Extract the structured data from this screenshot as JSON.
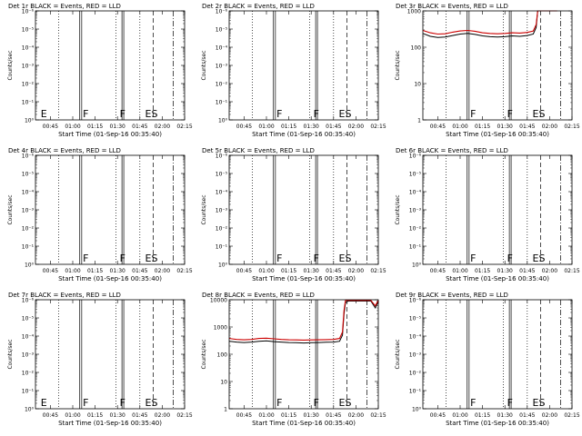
{
  "figure": {
    "x_tick_labels": [
      "00:45",
      "01:00",
      "01:15",
      "01:30",
      "01:45",
      "02:00",
      "02:15"
    ],
    "xlabel": "Start Time (01-Sep-16 00:35:40)"
  },
  "chart_data": [
    {
      "type": "line",
      "title": "Det 1r BLACK = Events, RED = LLD",
      "ylabel": "Counts/sec",
      "y_scale": "log",
      "ylim": [
        1,
        1e-06
      ],
      "y_tick_labels": [
        "10⁰",
        "10⁻¹",
        "10⁻²",
        "10⁻³",
        "10⁻⁴",
        "10⁻⁵",
        "10⁻⁶"
      ],
      "xlim_minutes": [
        0,
        100
      ],
      "solid_lines_min": [
        29.7,
        31.0,
        58.0,
        59.2
      ],
      "dotted_lines_min": [
        15.5,
        54.0,
        70.0
      ],
      "dashed_lines_min": [
        79.0
      ],
      "dashdot_lines_min": [
        92.3
      ],
      "markers": [
        {
          "label": "E",
          "x_min": 3.5
        },
        {
          "label": "F",
          "x_min": 31.8
        },
        {
          "label": "F",
          "x_min": 56.5
        },
        {
          "label": "ES",
          "x_min": 73.5
        }
      ],
      "series": []
    },
    {
      "type": "line",
      "title": "Det 2r BLACK = Events, RED = LLD",
      "ylabel": "Counts/sec",
      "y_scale": "log",
      "ylim": [
        1,
        1e-06
      ],
      "y_tick_labels": [
        "10⁰",
        "10⁻¹",
        "10⁻²",
        "10⁻³",
        "10⁻⁴",
        "10⁻⁵",
        "10⁻⁶"
      ],
      "xlim_minutes": [
        0,
        100
      ],
      "solid_lines_min": [
        29.7,
        31.0,
        58.0,
        59.2
      ],
      "dotted_lines_min": [
        15.5,
        54.0,
        70.0
      ],
      "dashed_lines_min": [
        79.0
      ],
      "dashdot_lines_min": [
        92.3
      ],
      "markers": [
        {
          "label": "F",
          "x_min": 31.8
        },
        {
          "label": "F",
          "x_min": 56.5
        },
        {
          "label": "ES",
          "x_min": 73.5
        }
      ],
      "series": []
    },
    {
      "type": "line",
      "title": "Det 3r BLACK = Events, RED = LLD",
      "ylabel": "Counts/sec",
      "y_scale": "log",
      "ylim": [
        1,
        1000
      ],
      "y_tick_labels": [
        "1",
        "10",
        "100",
        "1000"
      ],
      "xlim_minutes": [
        0,
        100
      ],
      "solid_lines_min": [
        29.7,
        31.0,
        58.0,
        59.2
      ],
      "dotted_lines_min": [
        15.5,
        54.0,
        70.0
      ],
      "dashed_lines_min": [
        79.0
      ],
      "dashdot_lines_min": [
        92.3
      ],
      "markers": [
        {
          "label": "F",
          "x_min": 31.8
        },
        {
          "label": "F",
          "x_min": 56.5
        },
        {
          "label": "ES",
          "x_min": 73.5
        }
      ],
      "series": [
        {
          "color": "#000000",
          "x": [
            0,
            5,
            10,
            15,
            20,
            25,
            30,
            35,
            40,
            45,
            50,
            55,
            60,
            65,
            70,
            74,
            76,
            77,
            78,
            80,
            85,
            90
          ],
          "y": [
            240,
            200,
            185,
            190,
            210,
            230,
            240,
            225,
            205,
            195,
            190,
            195,
            205,
            200,
            210,
            230,
            350,
            1000,
            1000,
            1000,
            1000,
            1000
          ]
        },
        {
          "color": "#cc0000",
          "x": [
            0,
            5,
            10,
            15,
            20,
            25,
            30,
            35,
            40,
            45,
            50,
            55,
            60,
            65,
            70,
            74,
            76,
            77,
            78,
            80,
            85,
            90
          ],
          "y": [
            290,
            250,
            230,
            235,
            260,
            280,
            290,
            275,
            250,
            240,
            235,
            240,
            250,
            245,
            255,
            280,
            420,
            1000,
            1000,
            1000,
            1000,
            1000
          ]
        }
      ]
    },
    {
      "type": "line",
      "title": "Det 4r BLACK = Events, RED = LLD",
      "ylabel": "Counts/sec",
      "y_scale": "log",
      "ylim": [
        1,
        1e-06
      ],
      "y_tick_labels": [
        "10⁰",
        "10⁻¹",
        "10⁻²",
        "10⁻³",
        "10⁻⁴",
        "10⁻⁵",
        "10⁻⁶"
      ],
      "xlim_minutes": [
        0,
        100
      ],
      "solid_lines_min": [
        29.7,
        31.0,
        58.0,
        59.2
      ],
      "dotted_lines_min": [
        15.5,
        54.0,
        70.0
      ],
      "dashed_lines_min": [
        79.0
      ],
      "dashdot_lines_min": [
        92.3
      ],
      "markers": [
        {
          "label": "F",
          "x_min": 31.8
        },
        {
          "label": "F",
          "x_min": 56.5
        },
        {
          "label": "ES",
          "x_min": 73.5
        }
      ],
      "series": []
    },
    {
      "type": "line",
      "title": "Det 5r BLACK = Events, RED = LLD",
      "ylabel": "Counts/sec",
      "y_scale": "log",
      "ylim": [
        1,
        1e-06
      ],
      "y_tick_labels": [
        "10⁰",
        "10⁻¹",
        "10⁻²",
        "10⁻³",
        "10⁻⁴",
        "10⁻⁵",
        "10⁻⁶"
      ],
      "xlim_minutes": [
        0,
        100
      ],
      "solid_lines_min": [
        29.7,
        31.0,
        58.0,
        59.2
      ],
      "dotted_lines_min": [
        15.5,
        54.0,
        70.0
      ],
      "dashed_lines_min": [
        79.0
      ],
      "dashdot_lines_min": [
        92.3
      ],
      "markers": [
        {
          "label": "F",
          "x_min": 31.8
        },
        {
          "label": "F",
          "x_min": 56.5
        },
        {
          "label": "ES",
          "x_min": 73.5
        }
      ],
      "series": []
    },
    {
      "type": "line",
      "title": "Det 6r BLACK = Events, RED = LLD",
      "ylabel": "Counts/sec",
      "y_scale": "log",
      "ylim": [
        1,
        1e-06
      ],
      "y_tick_labels": [
        "10⁰",
        "10⁻¹",
        "10⁻²",
        "10⁻³",
        "10⁻⁴",
        "10⁻⁵",
        "10⁻⁶"
      ],
      "xlim_minutes": [
        0,
        100
      ],
      "solid_lines_min": [
        29.7,
        31.0,
        58.0,
        59.2
      ],
      "dotted_lines_min": [
        15.5,
        54.0,
        70.0
      ],
      "dashed_lines_min": [
        79.0
      ],
      "dashdot_lines_min": [
        92.3
      ],
      "markers": [
        {
          "label": "F",
          "x_min": 31.8
        },
        {
          "label": "F",
          "x_min": 56.5
        },
        {
          "label": "ES",
          "x_min": 73.5
        }
      ],
      "series": []
    },
    {
      "type": "line",
      "title": "Det 7r BLACK = Events, RED = LLD",
      "ylabel": "Counts/sec",
      "y_scale": "log",
      "ylim": [
        1,
        1e-06
      ],
      "y_tick_labels": [
        "10⁰",
        "10⁻¹",
        "10⁻²",
        "10⁻³",
        "10⁻⁴",
        "10⁻⁵",
        "10⁻⁶"
      ],
      "xlim_minutes": [
        0,
        100
      ],
      "solid_lines_min": [
        29.7,
        31.0,
        58.0,
        59.2
      ],
      "dotted_lines_min": [
        15.5,
        54.0,
        70.0
      ],
      "dashed_lines_min": [
        79.0
      ],
      "dashdot_lines_min": [
        92.3
      ],
      "markers": [
        {
          "label": "E",
          "x_min": 3.5
        },
        {
          "label": "F",
          "x_min": 31.8
        },
        {
          "label": "F",
          "x_min": 56.5
        },
        {
          "label": "ES",
          "x_min": 73.5
        }
      ],
      "series": []
    },
    {
      "type": "line",
      "title": "Det 8r BLACK = Events, RED = LLD",
      "ylabel": "Counts/sec",
      "y_scale": "log",
      "ylim": [
        1,
        10000
      ],
      "y_tick_labels": [
        "1",
        "10",
        "100",
        "1000",
        "10000"
      ],
      "xlim_minutes": [
        0,
        100
      ],
      "solid_lines_min": [
        29.7,
        31.0,
        58.0,
        59.2
      ],
      "dotted_lines_min": [
        15.5,
        54.0,
        70.0
      ],
      "dashed_lines_min": [
        79.0
      ],
      "dashdot_lines_min": [
        92.3
      ],
      "markers": [
        {
          "label": "F",
          "x_min": 31.8
        },
        {
          "label": "F",
          "x_min": 56.5
        },
        {
          "label": "ES",
          "x_min": 73.5
        }
      ],
      "series": [
        {
          "color": "#000000",
          "x": [
            0,
            5,
            10,
            15,
            20,
            25,
            30,
            35,
            40,
            45,
            50,
            55,
            60,
            65,
            70,
            74,
            76,
            77,
            78,
            80,
            85,
            90,
            95,
            98,
            100
          ],
          "y": [
            300,
            280,
            270,
            280,
            300,
            310,
            290,
            280,
            270,
            265,
            260,
            265,
            270,
            275,
            280,
            300,
            500,
            3000,
            8000,
            9000,
            9000,
            9000,
            9000,
            5000,
            9000
          ]
        },
        {
          "color": "#cc0000",
          "x": [
            0,
            5,
            10,
            15,
            20,
            25,
            30,
            35,
            40,
            45,
            50,
            55,
            60,
            65,
            70,
            74,
            76,
            77,
            78,
            80,
            85,
            90,
            95,
            98,
            100
          ],
          "y": [
            380,
            350,
            340,
            350,
            380,
            390,
            370,
            350,
            340,
            335,
            330,
            335,
            340,
            345,
            350,
            380,
            650,
            4000,
            9500,
            9500,
            9500,
            9500,
            9500,
            6000,
            9500
          ]
        }
      ]
    },
    {
      "type": "line",
      "title": "Det 9r BLACK = Events, RED = LLD",
      "ylabel": "Counts/sec",
      "y_scale": "log",
      "ylim": [
        1,
        1e-06
      ],
      "y_tick_labels": [
        "10⁰",
        "10⁻¹",
        "10⁻²",
        "10⁻³",
        "10⁻⁴",
        "10⁻⁵",
        "10⁻⁶"
      ],
      "xlim_minutes": [
        0,
        100
      ],
      "solid_lines_min": [
        29.7,
        31.0,
        58.0,
        59.2
      ],
      "dotted_lines_min": [
        15.5,
        54.0,
        70.0
      ],
      "dashed_lines_min": [
        79.0
      ],
      "dashdot_lines_min": [
        92.3
      ],
      "markers": [
        {
          "label": "F",
          "x_min": 31.8
        },
        {
          "label": "F",
          "x_min": 56.5
        },
        {
          "label": "ES",
          "x_min": 73.5
        }
      ],
      "series": []
    }
  ]
}
